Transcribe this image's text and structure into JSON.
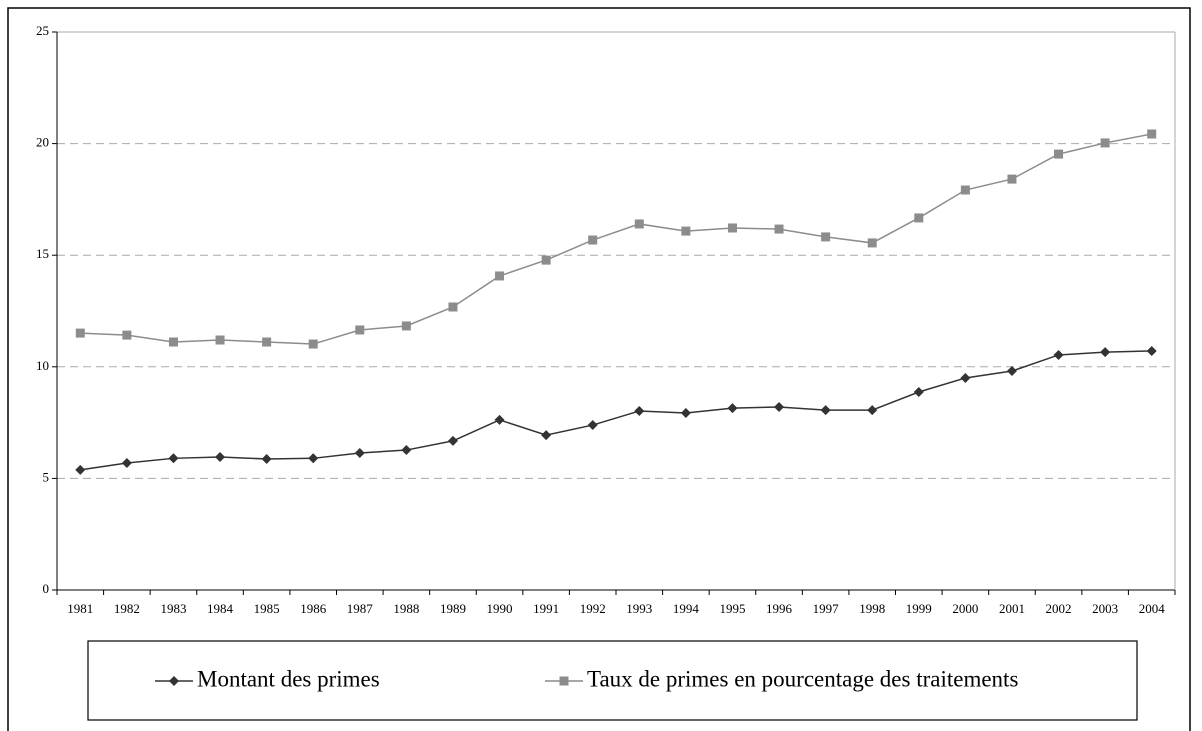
{
  "chart_data": {
    "type": "line",
    "categories": [
      "1981",
      "1982",
      "1983",
      "1984",
      "1985",
      "1986",
      "1987",
      "1988",
      "1989",
      "1990",
      "1991",
      "1992",
      "1993",
      "1994",
      "1995",
      "1996",
      "1997",
      "1998",
      "1999",
      "2000",
      "2001",
      "2002",
      "2003",
      "2004"
    ],
    "series": [
      {
        "name": "Montant des primes",
        "color": "#333333",
        "marker": "diamond",
        "values": [
          5.38,
          5.69,
          5.9,
          5.96,
          5.87,
          5.9,
          6.14,
          6.27,
          6.68,
          7.62,
          6.94,
          7.39,
          8.02,
          7.93,
          8.15,
          8.2,
          8.06,
          8.06,
          8.87,
          9.5,
          9.81,
          10.53,
          10.66,
          10.71
        ]
      },
      {
        "name": "Taux de primes en pourcentage des traitements",
        "color": "#8c8c8c",
        "marker": "square",
        "values": [
          11.51,
          11.42,
          11.11,
          11.2,
          11.11,
          11.02,
          11.65,
          11.83,
          12.68,
          14.07,
          14.78,
          15.68,
          16.4,
          16.08,
          16.22,
          16.17,
          15.82,
          15.55,
          16.67,
          17.92,
          18.41,
          19.53,
          20.03,
          20.43
        ]
      }
    ],
    "ylim": [
      0,
      25
    ],
    "yticks": [
      0,
      5,
      10,
      15,
      20,
      25
    ],
    "grid": true,
    "legend": "bottom"
  }
}
